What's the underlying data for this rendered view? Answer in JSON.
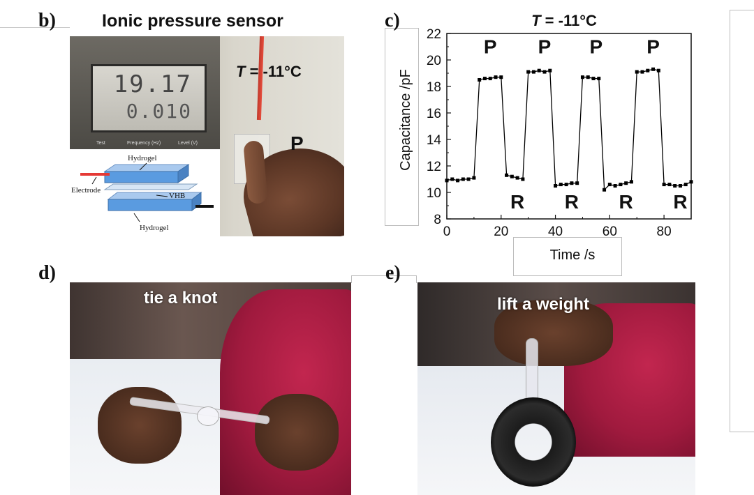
{
  "panels": {
    "b": {
      "label": "b)",
      "title": "Ionic pressure sensor",
      "meter_main": "19.17",
      "meter_sub": "0.010",
      "meter_labels": [
        "Test",
        "Frequency (Hz)",
        "Level (V)"
      ],
      "temp_T": "T",
      "temp_value": " = -11°C",
      "press_letter": "P",
      "inset": {
        "hydrogel_top": "Hydrogel",
        "electrode": "Electrode",
        "vhb": "VHB",
        "hydrogel_bottom": "Hydrogel"
      }
    },
    "c": {
      "label": "c)"
    },
    "d": {
      "label": "d)",
      "caption": "tie a knot"
    },
    "e": {
      "label": "e)",
      "caption": "lift a weight"
    }
  },
  "chart_data": {
    "type": "line",
    "title_T": "T",
    "title_rest": " = -11°C",
    "xlabel": "Time /s",
    "ylabel": "Capacitance /pF",
    "xlim": [
      0,
      90
    ],
    "ylim": [
      8,
      22
    ],
    "xticks": [
      0,
      20,
      40,
      60,
      80
    ],
    "yticks": [
      8,
      10,
      12,
      14,
      16,
      18,
      20,
      22
    ],
    "grid": false,
    "series": [
      {
        "color": "#000000",
        "x": [
          0,
          2,
          4,
          6,
          8,
          10,
          12,
          14,
          16,
          18,
          20,
          22,
          24,
          26,
          28,
          30,
          32,
          34,
          36,
          38,
          40,
          42,
          44,
          46,
          48,
          50,
          52,
          54,
          56,
          58,
          60,
          62,
          64,
          66,
          68,
          70,
          72,
          74,
          76,
          78,
          80,
          82,
          84,
          86,
          88,
          90
        ],
        "y": [
          10.9,
          11.0,
          10.9,
          11.0,
          11.0,
          11.1,
          18.5,
          18.6,
          18.6,
          18.7,
          18.7,
          11.3,
          11.2,
          11.1,
          11.0,
          19.1,
          19.1,
          19.2,
          19.1,
          19.2,
          10.5,
          10.6,
          10.6,
          10.7,
          10.7,
          18.7,
          18.7,
          18.6,
          18.6,
          10.2,
          10.6,
          10.5,
          10.6,
          10.7,
          10.8,
          19.1,
          19.1,
          19.2,
          19.3,
          19.2,
          10.6,
          10.6,
          10.5,
          10.5,
          10.6,
          10.8
        ]
      }
    ],
    "annotations": [
      {
        "text": "P",
        "x": 16,
        "y": 20.5
      },
      {
        "text": "P",
        "x": 36,
        "y": 20.5
      },
      {
        "text": "P",
        "x": 55,
        "y": 20.5
      },
      {
        "text": "P",
        "x": 76,
        "y": 20.5
      },
      {
        "text": "R",
        "x": 26,
        "y": 8.8
      },
      {
        "text": "R",
        "x": 46,
        "y": 8.8
      },
      {
        "text": "R",
        "x": 66,
        "y": 8.8
      },
      {
        "text": "R",
        "x": 86,
        "y": 8.8
      }
    ]
  }
}
